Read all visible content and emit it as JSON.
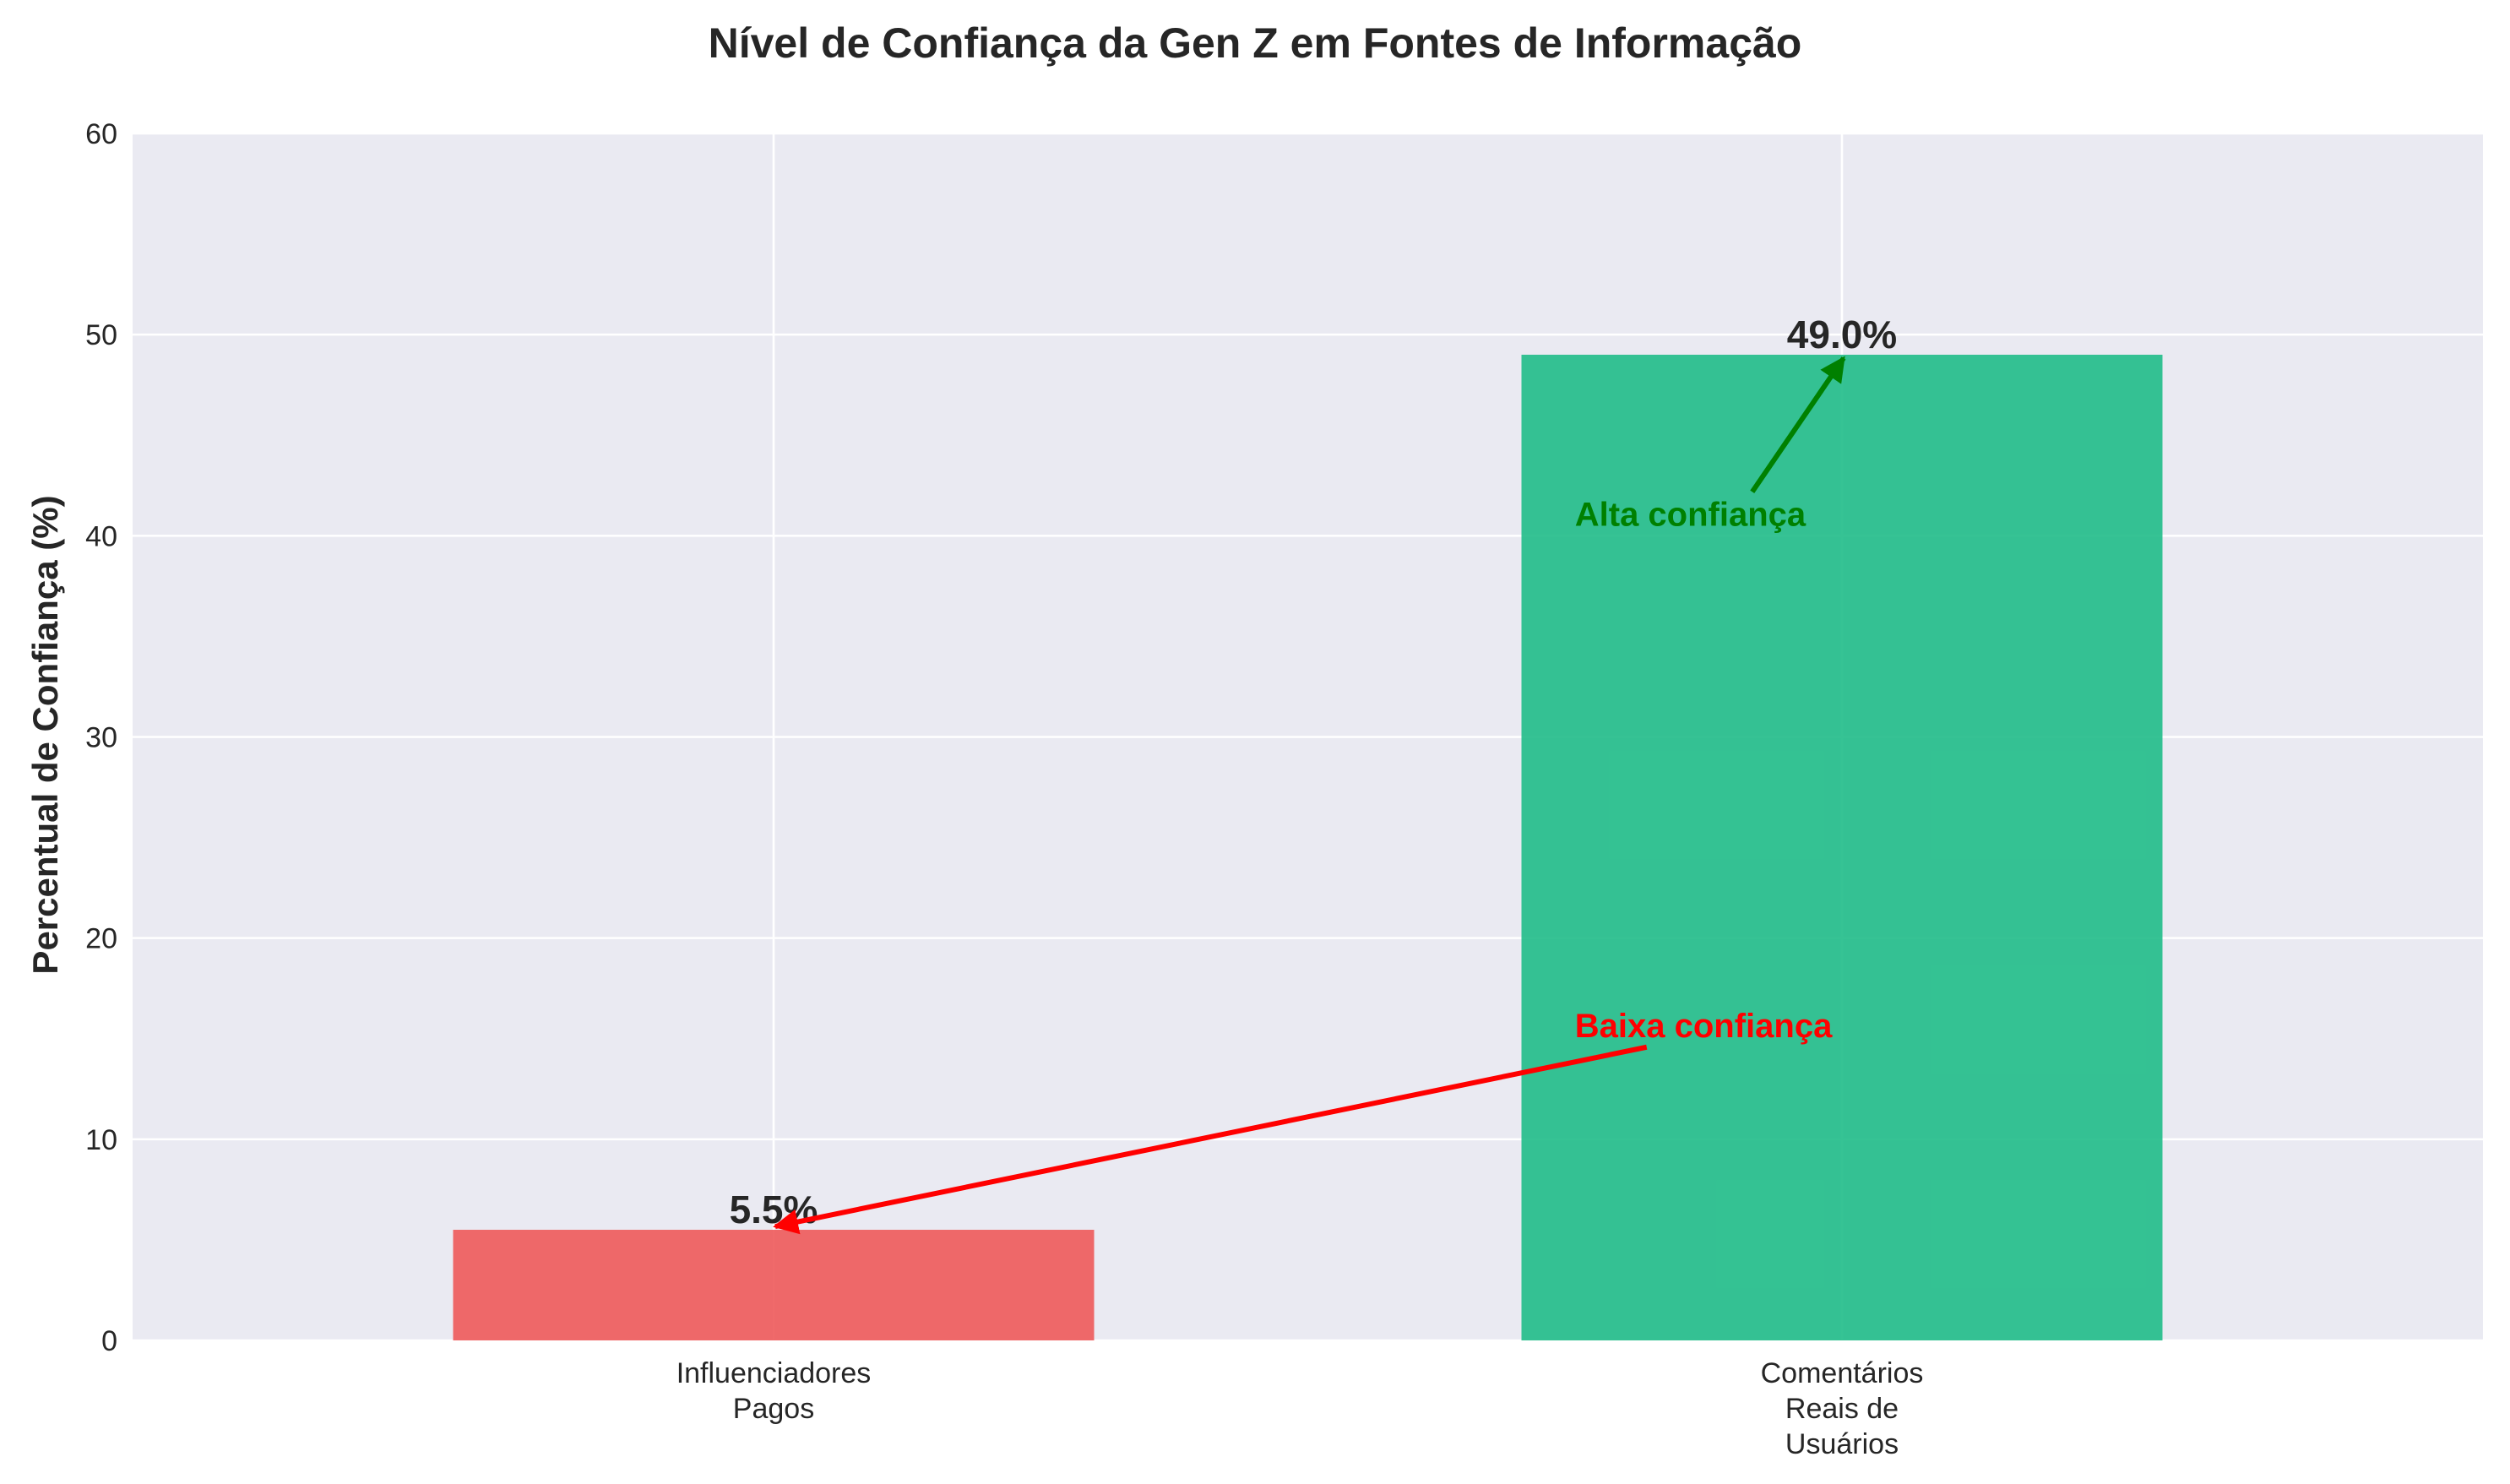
{
  "chart_data": {
    "type": "bar",
    "title": "Nível de Confiança da Gen Z em Fontes de Informação",
    "xlabel": "",
    "ylabel": "Percentual de Confiança (%)",
    "ylim": [
      0,
      60
    ],
    "yticks": [
      "0",
      "10",
      "20",
      "30",
      "40",
      "50",
      "60"
    ],
    "grid": true,
    "categories": [
      [
        "Influenciadores",
        "Pagos"
      ],
      [
        "Comentários",
        "Reais de",
        "Usuários"
      ]
    ],
    "values": [
      5.5,
      49.0
    ],
    "value_labels": [
      "5.5%",
      "49.0%"
    ],
    "colors": [
      "#ee5a5a",
      "#20bd88"
    ],
    "background": "#eaeaf2",
    "annotations": [
      {
        "text": "Baixa confiança",
        "color": "#ff0000",
        "target_bar": 0,
        "text_x": 0.75,
        "text_y": 15
      },
      {
        "text": "Alta confiança",
        "color": "#008000",
        "target_bar": 1,
        "text_x": 0.75,
        "text_y": 40
      }
    ]
  }
}
